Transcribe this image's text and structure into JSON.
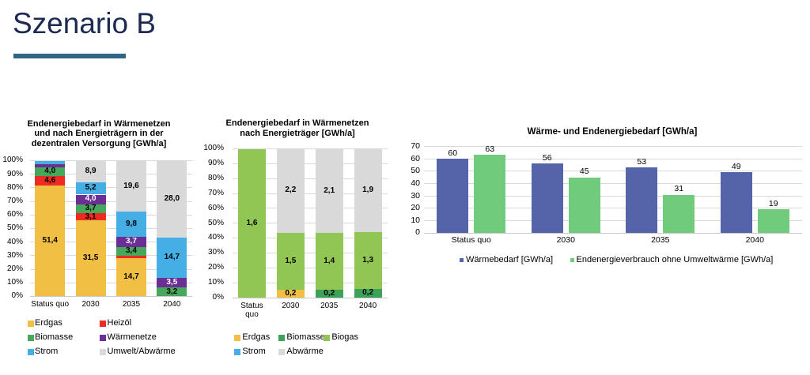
{
  "slide": {
    "title": "Szenario B"
  },
  "accent_colors": {
    "title_text": "#1c2951",
    "title_underline": "#2f6587"
  },
  "chart_data": [
    {
      "id": "dezentral",
      "type": "bar",
      "subtype": "stacked-100percent-column",
      "title": "Endenergiebedarf in Wärmenetzen und nach Energieträgern in der dezentralen Versorgung [GWh/a]",
      "title_lines": [
        "Endenergiebedarf in Wärmenetzen",
        "und nach Energieträgern in der",
        "dezentralen Versorgung [GWh/a]"
      ],
      "categories": [
        "Status quo",
        "2030",
        "2035",
        "2040"
      ],
      "series": [
        {
          "name": "Erdgas",
          "color": "#f0bf44",
          "label_color": "#000000",
          "values": [
            51.4,
            31.5,
            14.7,
            0
          ],
          "labels": [
            "51,4",
            "31,5",
            "14,7",
            ""
          ]
        },
        {
          "name": "Heizöl",
          "color": "#ee2b22",
          "label_color": "#000000",
          "values": [
            4.6,
            3.1,
            1.0,
            0
          ],
          "labels": [
            "4,6",
            "3,1",
            "",
            ""
          ]
        },
        {
          "name": "Biomasse",
          "color": "#47a85c",
          "label_color": "#000000",
          "values": [
            4.0,
            3.7,
            3.4,
            3.2
          ],
          "labels": [
            "4,0",
            "3,7",
            "3,4",
            "3,2"
          ]
        },
        {
          "name": "Wärmenetze",
          "color": "#6b2e95",
          "label_color": "#ffffff",
          "values": [
            1.4,
            4.0,
            3.7,
            3.5
          ],
          "labels": [
            "",
            "4,0",
            "3,7",
            "3,5"
          ]
        },
        {
          "name": "Strom",
          "color": "#45aee5",
          "label_color": "#000000",
          "values": [
            1.6,
            5.2,
            9.8,
            14.7
          ],
          "labels": [
            "",
            "5,2",
            "9,8",
            "14,7"
          ]
        },
        {
          "name": "Umwelt/Abwärme",
          "color": "#d9d9d9",
          "label_color": "#000000",
          "values": [
            0,
            8.9,
            19.6,
            28.0
          ],
          "labels": [
            "",
            "8,9",
            "19,6",
            "28,0"
          ]
        }
      ],
      "y_axis": {
        "min": 0,
        "max": 100,
        "step": 10,
        "tick_labels": [
          "0%",
          "10%",
          "20%",
          "30%",
          "40%",
          "50%",
          "60%",
          "70%",
          "80%",
          "90%",
          "100%"
        ]
      },
      "grid": true,
      "legend_position": "bottom"
    },
    {
      "id": "waermenetze",
      "type": "bar",
      "subtype": "stacked-100percent-column",
      "title": "Endenergiebedarf in Wärmenetzen nach Energieträger [GWh/a]",
      "title_lines": [
        "Endenergiebedarf in Wärmenetzen",
        "nach Energieträger [GWh/a]"
      ],
      "categories": [
        "Status quo",
        "2030",
        "2035",
        "2040"
      ],
      "category_wrap": [
        [
          "Status",
          "quo"
        ],
        [
          "2030"
        ],
        [
          "2035"
        ],
        [
          "2040"
        ]
      ],
      "series": [
        {
          "name": "Erdgas",
          "color": "#f0bf44",
          "label_color": "#000000",
          "values": [
            0,
            0.2,
            0,
            0
          ],
          "labels": [
            "",
            "0,2",
            "",
            ""
          ]
        },
        {
          "name": "Biomasse",
          "color": "#3ea159",
          "label_color": "#000000",
          "values": [
            0,
            0,
            0.2,
            0.2
          ],
          "labels": [
            "",
            "",
            "0,2",
            "0,2"
          ]
        },
        {
          "name": "Biogas",
          "color": "#92c654",
          "label_color": "#000000",
          "values": [
            1.6,
            1.5,
            1.4,
            1.3
          ],
          "labels": [
            "1,6",
            "1,5",
            "1,4",
            "1,3"
          ]
        },
        {
          "name": "Strom",
          "color": "#45aee5",
          "label_color": "#000000",
          "values": [
            0,
            0,
            0,
            0
          ],
          "labels": [
            "",
            "",
            "",
            ""
          ]
        },
        {
          "name": "Abwärme",
          "color": "#d9d9d9",
          "label_color": "#000000",
          "values": [
            0,
            2.2,
            2.1,
            1.9
          ],
          "labels": [
            "",
            "2,2",
            "2,1",
            "1,9"
          ]
        }
      ],
      "y_axis": {
        "min": 0,
        "max": 100,
        "step": 10,
        "tick_labels": [
          "0%",
          "10%",
          "20%",
          "30%",
          "40%",
          "50%",
          "60%",
          "70%",
          "80%",
          "90%",
          "100%"
        ]
      },
      "grid": true,
      "legend_position": "bottom"
    },
    {
      "id": "bedarf",
      "type": "bar",
      "subtype": "grouped-column",
      "title": "Wärme- und Endenergiebedarf [GWh/a]",
      "categories": [
        "Status quo",
        "2030",
        "2035",
        "2040"
      ],
      "series": [
        {
          "name": "Wärmebedarf [GWh/a]",
          "color": "#5563a9",
          "values": [
            60,
            56,
            53,
            49
          ],
          "labels": [
            "60",
            "56",
            "53",
            "49"
          ]
        },
        {
          "name": "Endenergieverbrauch ohne Umweltwärme [GWh/a]",
          "color": "#70cb7d",
          "values": [
            63,
            45,
            31,
            19
          ],
          "labels": [
            "63",
            "45",
            "31",
            "19"
          ]
        }
      ],
      "y_axis": {
        "min": 0,
        "max": 70,
        "step": 10,
        "tick_labels": [
          "0",
          "10",
          "20",
          "30",
          "40",
          "50",
          "60",
          "70"
        ]
      },
      "grid": true,
      "legend_position": "bottom"
    }
  ]
}
